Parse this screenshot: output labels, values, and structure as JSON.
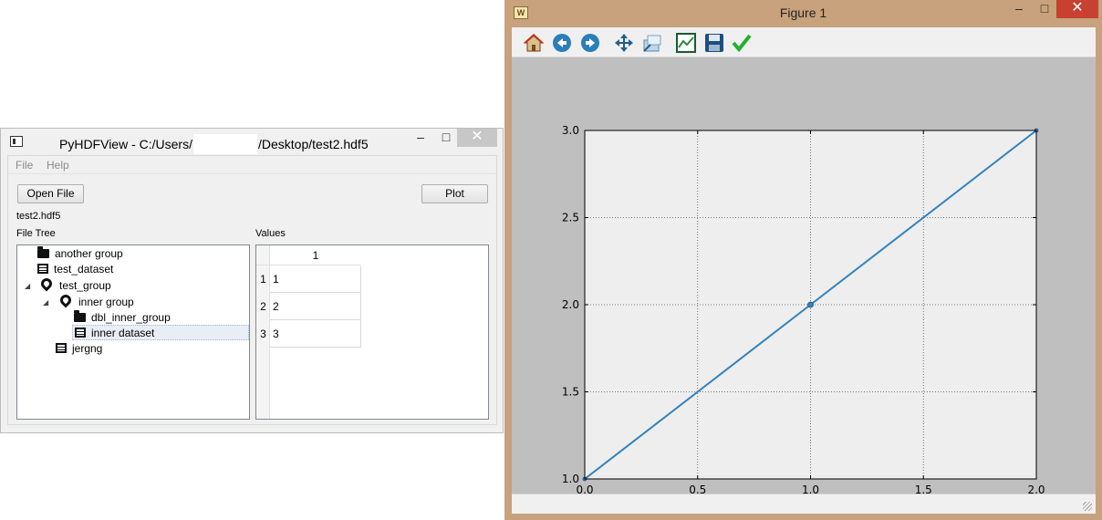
{
  "pyhdfview": {
    "title_prefix": "PyHDFView - C:/Users/",
    "title_suffix": "/Desktop/test2.hdf5",
    "menu": [
      "File",
      "Help"
    ],
    "open_button": "Open File",
    "plot_button": "Plot",
    "file_name": "test2.hdf5",
    "tree_label": "File Tree",
    "values_label": "Values",
    "tree": [
      {
        "label": "another group",
        "icon": "folder-icon"
      },
      {
        "label": "test_dataset",
        "icon": "table-icon"
      },
      {
        "label": "test_group",
        "icon": "pin-icon"
      },
      {
        "label": "inner group",
        "icon": "pin-icon"
      },
      {
        "label": "dbl_inner_group",
        "icon": "folder-icon"
      },
      {
        "label": "inner dataset",
        "icon": "table-icon",
        "selected": true
      },
      {
        "label": "jergng",
        "icon": "table-icon"
      }
    ],
    "values_table": {
      "column_header": "1",
      "row_headers": [
        "1",
        "2",
        "3"
      ],
      "cells": [
        "1",
        "2",
        "3"
      ]
    }
  },
  "figure": {
    "title": "Figure 1",
    "toolbar_icons": [
      "home-icon",
      "back-icon",
      "forward-icon",
      "pan-icon",
      "zoom-icon",
      "configure-subplots-icon",
      "save-icon",
      "check-icon"
    ]
  },
  "colors": {
    "line": "#3182bd",
    "axes_bg": "#eeeeee",
    "figure_bg": "#bfbfbf",
    "figure_frame": "#c8a27c"
  },
  "chart_data": {
    "type": "line",
    "x": [
      0.0,
      1.0,
      2.0
    ],
    "y": [
      1.0,
      2.0,
      3.0
    ],
    "marker_x": [
      1.0
    ],
    "xlim": [
      0.0,
      2.0
    ],
    "ylim": [
      1.0,
      3.0
    ],
    "xticks": [
      "0.0",
      "0.5",
      "1.0",
      "1.5",
      "2.0"
    ],
    "yticks": [
      "1.0",
      "1.5",
      "2.0",
      "2.5",
      "3.0"
    ],
    "grid": true,
    "title": "",
    "xlabel": "",
    "ylabel": ""
  }
}
